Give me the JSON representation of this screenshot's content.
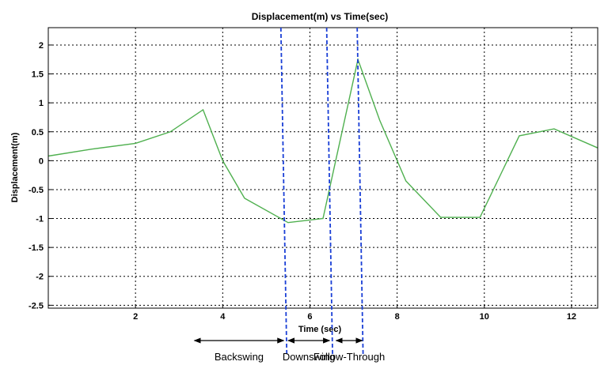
{
  "chart_data": {
    "type": "line",
    "title": "Displacement(m) vs Time(sec)",
    "xlabel": "Time (sec)",
    "ylabel": "Displacement(m)",
    "xlim": [
      0,
      12.6
    ],
    "ylim": [
      -2.55,
      2.3
    ],
    "x_ticks": [
      2,
      4,
      6,
      8,
      10,
      12
    ],
    "y_ticks": [
      2,
      1.5,
      1,
      0.5,
      0,
      -0.5,
      -1,
      -1.5,
      -2,
      -2.5
    ],
    "grid": true,
    "line_color": "#4fb04f",
    "marker_color": "#1a3fd6",
    "series": [
      {
        "x": [
          0,
          1.0,
          2.0,
          2.8,
          3.55,
          4.0,
          4.5,
          5.5,
          6.3,
          7.1,
          7.6,
          8.2,
          9.0,
          9.9,
          10.8,
          11.6,
          12.6
        ],
        "y": [
          0.08,
          0.2,
          0.3,
          0.5,
          0.88,
          0.0,
          -0.65,
          -1.07,
          -1.0,
          1.75,
          0.7,
          -0.35,
          -0.98,
          -0.98,
          0.43,
          0.55,
          0.22
        ]
      }
    ],
    "phase_markers_x": [
      5.45,
      6.5,
      7.2
    ],
    "phases": [
      {
        "label": "Backswing",
        "from": 3.35,
        "to": 5.4
      },
      {
        "label": "Downswing",
        "from": 5.5,
        "to": 6.45
      },
      {
        "label": "Follow-Through",
        "from": 6.6,
        "to": 7.2
      }
    ]
  }
}
